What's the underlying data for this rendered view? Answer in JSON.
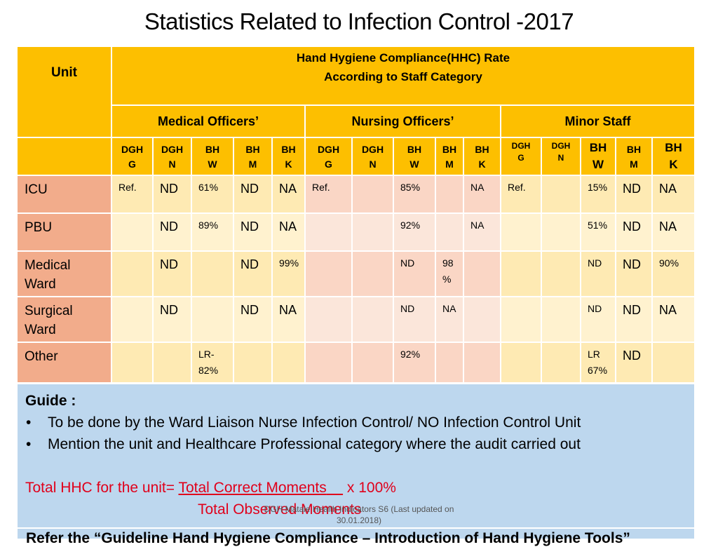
{
  "title": "Statistics Related to Infection Control -2017",
  "header": {
    "unit_label": "Unit",
    "main_line1": "Hand Hygiene Compliance(HHC) Rate",
    "main_line2": "According to Staff Category",
    "groups": [
      "Medical Officers’",
      "Nursing Officers’",
      "Minor Staff"
    ]
  },
  "subheaders": [
    [
      "DGH",
      "G"
    ],
    [
      "DGH",
      "N"
    ],
    [
      "BH",
      "W"
    ],
    [
      "BH",
      "M"
    ],
    [
      "BH",
      "K"
    ],
    [
      "DGH",
      "G"
    ],
    [
      "DGH",
      "N"
    ],
    [
      "BH",
      "W"
    ],
    [
      "BH",
      "M"
    ],
    [
      "BH",
      "K"
    ],
    [
      "DGH",
      "G"
    ],
    [
      "DGH",
      "N"
    ],
    [
      "BH",
      "W"
    ],
    [
      "BH",
      "M"
    ],
    [
      "BH",
      "K"
    ]
  ],
  "rows": [
    {
      "unit": [
        "ICU"
      ],
      "values": [
        "Ref.",
        "ND",
        "61%",
        "ND",
        "NA",
        "Ref.",
        "",
        "85%",
        "",
        "NA",
        "Ref.",
        "",
        "15%",
        "ND",
        "NA"
      ]
    },
    {
      "unit": [
        "PBU"
      ],
      "values": [
        "",
        "ND",
        "89%",
        "ND",
        "NA",
        "",
        "",
        "92%",
        "",
        "NA",
        "",
        "",
        "51%",
        "ND",
        "NA"
      ]
    },
    {
      "unit": [
        "Medical",
        "Ward"
      ],
      "values": [
        "",
        "ND",
        "",
        "ND",
        "99%",
        "",
        "",
        "ND",
        "98 %",
        "",
        "",
        "",
        "ND",
        "ND",
        "90%"
      ]
    },
    {
      "unit": [
        "Surgical",
        "Ward"
      ],
      "values": [
        "",
        "ND",
        "",
        "ND",
        "NA",
        "",
        "",
        "ND",
        "NA",
        "",
        "",
        "",
        "ND",
        "ND",
        "NA"
      ]
    },
    {
      "unit": [
        "Other"
      ],
      "values": [
        "",
        "",
        "LR- 82%",
        "",
        "",
        "",
        "",
        "92%",
        "",
        "",
        "",
        "",
        "LR 67%",
        "ND",
        ""
      ]
    }
  ],
  "guide": {
    "title": "Guide :",
    "bullets": [
      "To be done by the Ward Liaison Nurse Infection Control/ NO Infection Control Unit",
      "Mention the unit and Healthcare Professional category where the audit carried out"
    ],
    "formula_prefix": "Total HHC for the unit=",
    "formula_numerator": "Total Correct Moments",
    "formula_suffix": "x 100%",
    "formula_denominator": "Total Observed Moments"
  },
  "footnote": "DGH Matale Health Indicators S6 (Last updated on 30.01.2018)",
  "bottom_partial": "Refer the “Guideline Hand Hygiene Compliance – Introduction of Hand Hygiene Tools”"
}
